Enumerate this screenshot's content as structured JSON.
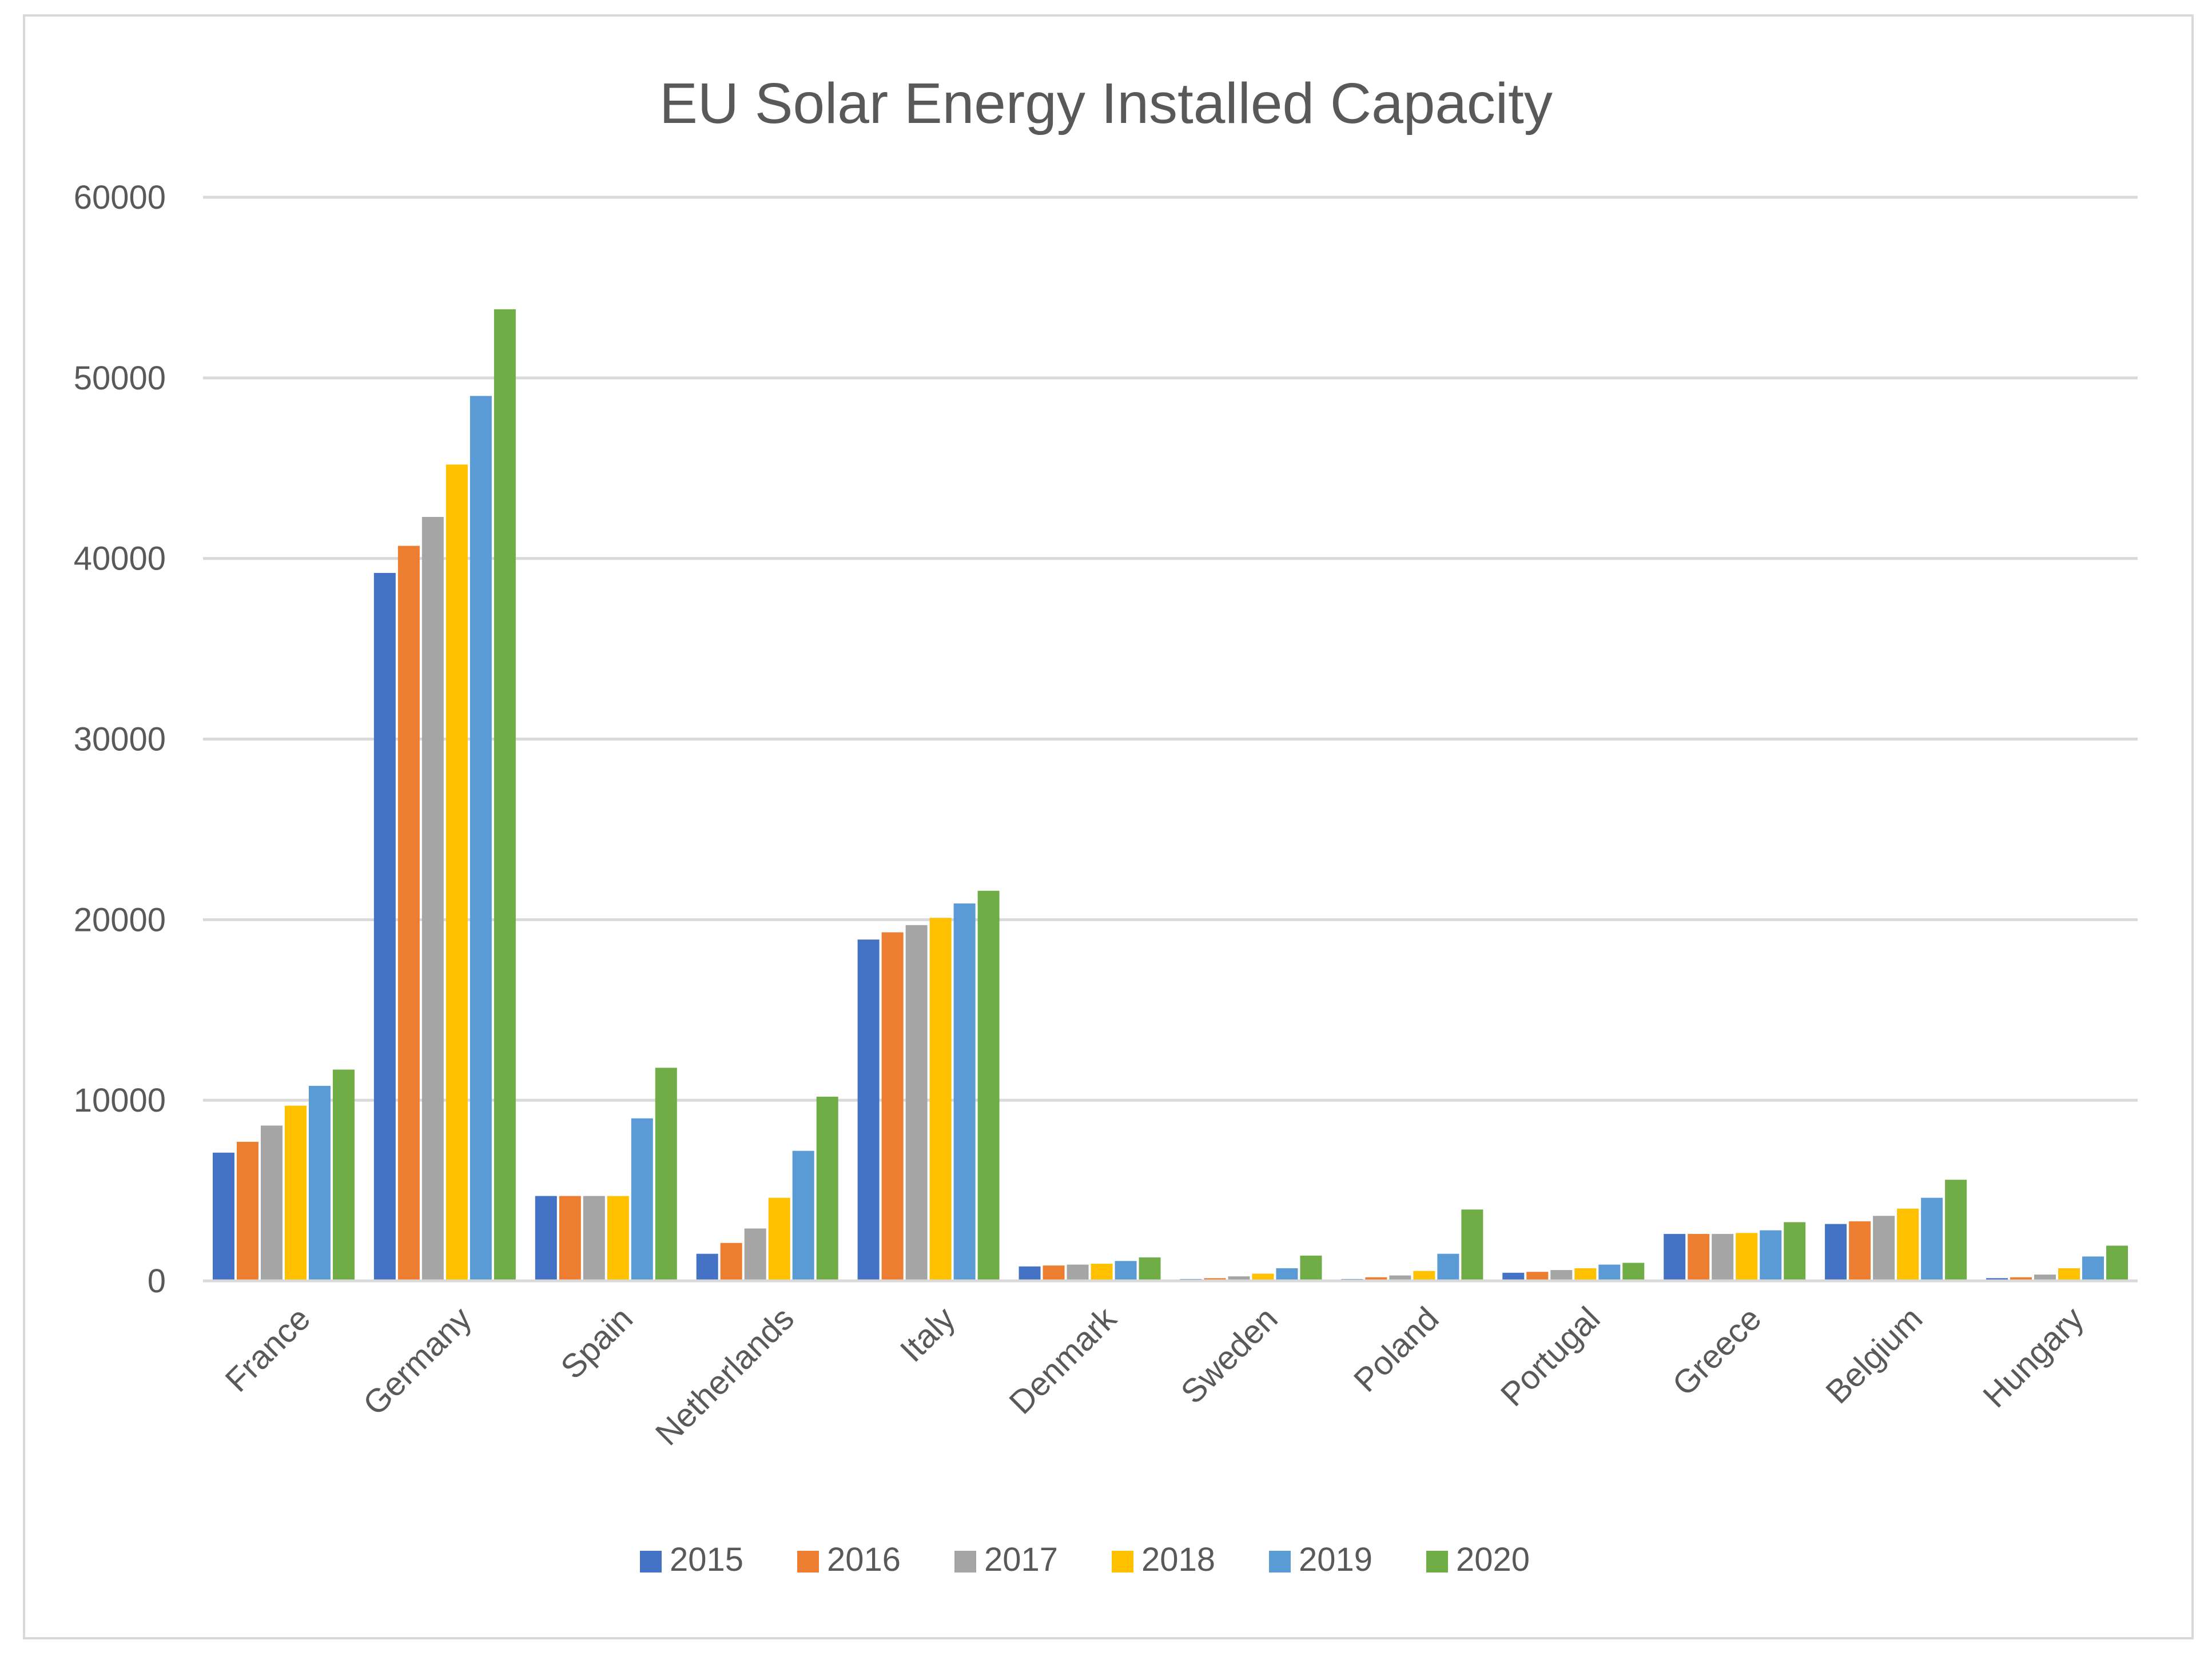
{
  "chart_data": {
    "type": "bar",
    "title": "EU Solar Energy Installed Capacity",
    "xlabel": "",
    "ylabel": "",
    "ylim": [
      0,
      60000
    ],
    "yticks": [
      "0",
      "10000",
      "20000",
      "30000",
      "40000",
      "50000",
      "60000"
    ],
    "grid": true,
    "legend_position": "bottom",
    "categories": [
      "France",
      "Germany",
      "Spain",
      "Netherlands",
      "Italy",
      "Denmark",
      "Sweden",
      "Poland",
      "Portugal",
      "Greece",
      "Belgium",
      "Hungary"
    ],
    "series": [
      {
        "name": "2015",
        "color": "#4472C4",
        "values": [
          7100,
          39200,
          4700,
          1500,
          18900,
          800,
          100,
          100,
          450,
          2600,
          3150,
          150
        ]
      },
      {
        "name": "2016",
        "color": "#ED7D31",
        "values": [
          7700,
          40700,
          4700,
          2100,
          19300,
          850,
          150,
          200,
          500,
          2600,
          3300,
          200
        ]
      },
      {
        "name": "2017",
        "color": "#A5A5A5",
        "values": [
          8600,
          42300,
          4700,
          2900,
          19700,
          900,
          250,
          300,
          600,
          2600,
          3600,
          350
        ]
      },
      {
        "name": "2018",
        "color": "#FFC000",
        "values": [
          9700,
          45200,
          4700,
          4600,
          20100,
          950,
          400,
          550,
          700,
          2650,
          4000,
          700
        ]
      },
      {
        "name": "2019",
        "color": "#5B9BD5",
        "values": [
          10800,
          49000,
          9000,
          7200,
          20900,
          1100,
          700,
          1500,
          900,
          2800,
          4600,
          1350
        ]
      },
      {
        "name": "2020",
        "color": "#70AD47",
        "values": [
          11700,
          53800,
          11800,
          10200,
          21600,
          1300,
          1400,
          3950,
          1000,
          3250,
          5600,
          1950
        ]
      }
    ]
  },
  "colors": {
    "axis": "#d9d9d9",
    "grid": "#d9d9d9",
    "text": "#595959"
  }
}
